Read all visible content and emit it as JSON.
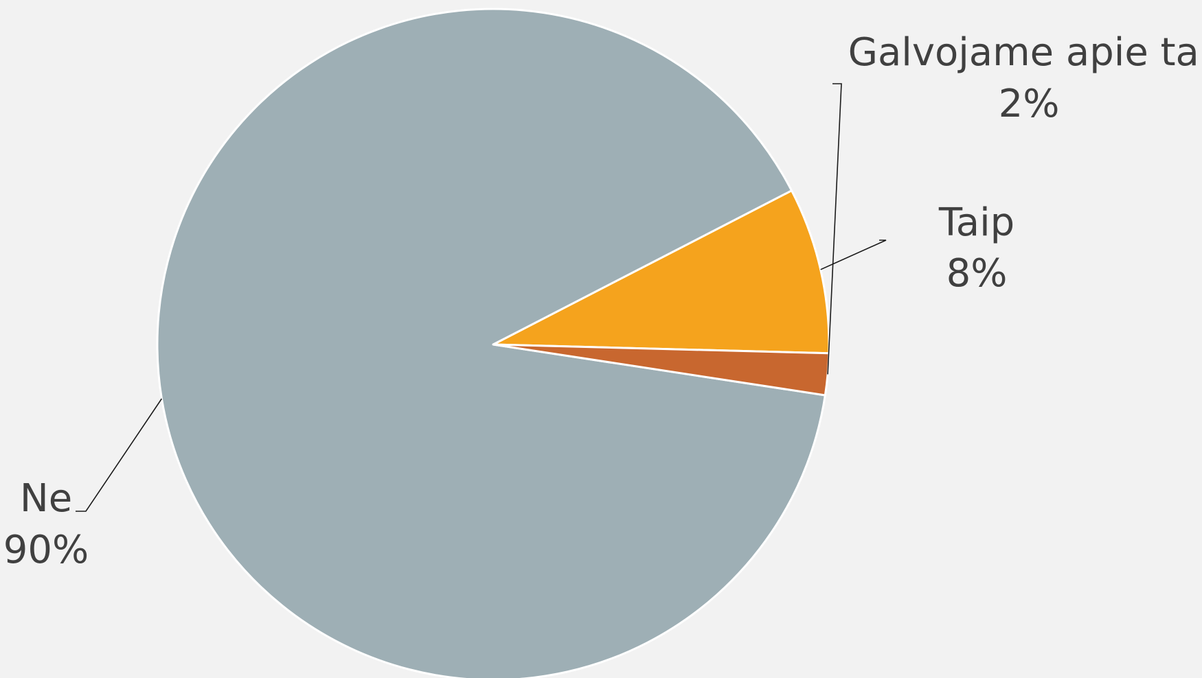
{
  "chart_data": {
    "type": "pie",
    "title": "",
    "slices": [
      {
        "label": "Taip",
        "value": 8,
        "value_label": "8%",
        "color": "#f5a31d"
      },
      {
        "label": "Ne",
        "value": 90,
        "value_label": "90%",
        "color": "#9eafb5"
      },
      {
        "label": "Galvojame apie tai",
        "value": 2,
        "value_label": "2%",
        "color": "#c8672f"
      }
    ],
    "legend": "none",
    "data_labels": "outside with leader lines"
  }
}
